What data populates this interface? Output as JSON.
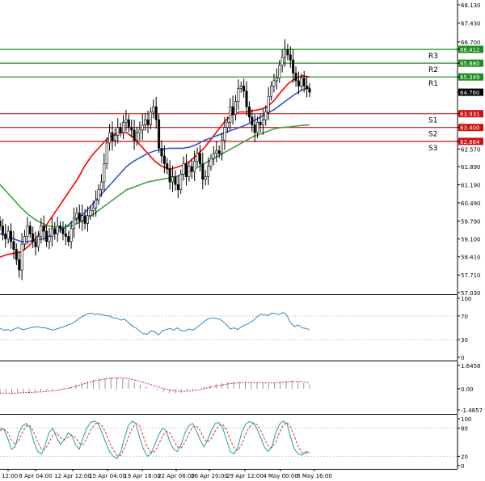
{
  "chart_data": [
    {
      "type": "candlestick",
      "panel": "price",
      "ylim": [
        57.03,
        68.13
      ],
      "y_ticks": [
        "68.130",
        "67.430",
        "66.700",
        "66.412",
        "65.880",
        "65.349",
        "64.760",
        "63.931",
        "63.400",
        "62.864",
        "62.570",
        "61.890",
        "61.190",
        "60.490",
        "59.790",
        "59.100",
        "58.410",
        "57.710",
        "57.030"
      ],
      "x_tick_labels": [
        "12:00",
        "8 Apr 04:00",
        "12 Apr 12:00",
        "15 Apr 04:00",
        "19 Apr 16:00",
        "22 Apr 08:00",
        "26 Apr 20:00",
        "29 Apr 12:00",
        "4 May 00:00",
        "6 May 16:00"
      ],
      "last_price": 64.76,
      "levels": [
        {
          "name": "R3",
          "value": 66.412,
          "label": "66.412",
          "color": "#1a8f1a"
        },
        {
          "name": "R2",
          "value": 65.88,
          "label": "65.880",
          "color": "#1a8f1a"
        },
        {
          "name": "R1",
          "value": 65.349,
          "label": "65.349",
          "color": "#1a8f1a"
        },
        {
          "name": "S1",
          "value": 63.931,
          "label": "63.931",
          "color": "#d01010"
        },
        {
          "name": "S2",
          "value": 63.4,
          "label": "63.400",
          "color": "#d01010"
        },
        {
          "name": "S3",
          "value": 62.864,
          "label": "62.864",
          "color": "#d01010"
        }
      ],
      "closes": [
        59.6,
        59.3,
        59.1,
        59.4,
        59.0,
        58.7,
        58.3,
        57.9,
        58.9,
        59.2,
        59.6,
        59.3,
        59.0,
        58.8,
        59.2,
        59.6,
        59.4,
        59.0,
        59.2,
        59.5,
        59.3,
        59.6,
        59.5,
        59.3,
        59.2,
        59.0,
        59.5,
        59.9,
        60.1,
        59.8,
        60.0,
        59.7,
        60.0,
        60.2,
        60.3,
        60.6,
        61.0,
        61.3,
        62.0,
        62.8,
        63.2,
        62.9,
        63.1,
        63.4,
        63.2,
        63.6,
        63.7,
        63.4,
        63.3,
        62.9,
        63.2,
        63.3,
        63.5,
        63.7,
        63.5,
        64.0,
        64.2,
        63.7,
        62.6,
        62.3,
        62.0,
        61.8,
        61.3,
        61.5,
        61.2,
        61.0,
        61.6,
        62.0,
        61.5,
        61.9,
        61.7,
        62.1,
        62.4,
        62.0,
        61.4,
        61.5,
        61.9,
        62.2,
        62.4,
        62.5,
        62.4,
        62.9,
        63.4,
        63.6,
        64.2,
        63.9,
        64.4,
        64.9,
        65.0,
        64.8,
        64.2,
        63.8,
        63.5,
        63.2,
        63.6,
        63.5,
        63.7,
        64.0,
        64.6,
        65.0,
        65.2,
        65.3,
        65.8,
        66.1,
        66.4,
        66.2,
        66.0,
        65.5,
        65.2,
        65.0,
        65.3,
        65.0,
        64.9,
        64.76
      ],
      "series": [
        {
          "color": "#ff0000",
          "values": [
            58.4,
            58.5,
            58.55,
            58.6,
            58.8,
            59.1,
            59.4,
            59.8,
            60.2,
            60.6,
            61.0,
            61.4,
            61.9,
            62.3,
            62.6,
            62.9,
            63.1,
            63.2,
            63.2,
            63.0,
            62.7,
            62.4,
            62.1,
            61.9,
            61.8,
            61.85,
            61.95,
            62.1,
            62.35,
            62.6,
            62.95,
            63.3,
            63.65,
            63.9,
            64.0,
            64.0,
            64.05,
            64.1,
            64.2,
            64.45,
            64.8,
            65.1,
            65.3,
            65.4,
            65.35
          ]
        },
        {
          "color": "#3355cc",
          "values": [
            59.3,
            59.2,
            59.1,
            59.0,
            59.0,
            59.05,
            59.1,
            59.2,
            59.35,
            59.5,
            59.7,
            59.9,
            60.1,
            60.4,
            60.7,
            61.0,
            61.3,
            61.6,
            61.9,
            62.1,
            62.25,
            62.4,
            62.5,
            62.55,
            62.6,
            62.6,
            62.6,
            62.65,
            62.75,
            62.9,
            63.0,
            63.1,
            63.2,
            63.3,
            63.4,
            63.5,
            63.65,
            63.8,
            63.95,
            64.1,
            64.3,
            64.5,
            64.7,
            64.85,
            64.95
          ]
        },
        {
          "color": "#40a040",
          "values": [
            61.2,
            60.9,
            60.6,
            60.3,
            60.05,
            59.85,
            59.7,
            59.6,
            59.55,
            59.55,
            59.6,
            59.7,
            59.85,
            60.0,
            60.2,
            60.4,
            60.6,
            60.8,
            61.0,
            61.1,
            61.2,
            61.3,
            61.35,
            61.4,
            61.45,
            61.5,
            61.6,
            61.7,
            61.85,
            62.0,
            62.15,
            62.3,
            62.45,
            62.6,
            62.75,
            62.9,
            63.05,
            63.15,
            63.25,
            63.35,
            63.4,
            63.42,
            63.45,
            63.48,
            63.5
          ]
        }
      ]
    },
    {
      "type": "line",
      "panel": "oscillator_1",
      "ylim": [
        0,
        100
      ],
      "y_ticks": [
        "100",
        "70",
        "30",
        "0"
      ],
      "series": [
        {
          "color": "#2a8ad4",
          "values": [
            49,
            46,
            47,
            45,
            49,
            50,
            47,
            48,
            50,
            51,
            52,
            50,
            50,
            48,
            46,
            48,
            50,
            52,
            55,
            57,
            61,
            66,
            70,
            73,
            75,
            73,
            74,
            72,
            71,
            70,
            67,
            66,
            63,
            65,
            59,
            53,
            50,
            44,
            40,
            39,
            45,
            43,
            38,
            45,
            47,
            49,
            46,
            50,
            45,
            45,
            48,
            46,
            50,
            55,
            60,
            65,
            67,
            66,
            65,
            61,
            55,
            48,
            50,
            47,
            52,
            55,
            58,
            62,
            68,
            73,
            72,
            71,
            75,
            74,
            73,
            76,
            71,
            58,
            52,
            55,
            50,
            49,
            47
          ]
        }
      ]
    },
    {
      "type": "bar",
      "panel": "oscillator_2",
      "ylim": [
        -1.4857,
        1.6458
      ],
      "y_ticks": [
        "1.6458",
        "0.00",
        "-1.4857"
      ],
      "signal_color": "#dd2222",
      "values": [
        -0.3,
        -0.32,
        -0.3,
        -0.28,
        -0.25,
        -0.22,
        -0.2,
        -0.18,
        -0.15,
        -0.1,
        -0.05,
        0.05,
        0.15,
        0.3,
        0.45,
        0.55,
        0.65,
        0.72,
        0.78,
        0.8,
        0.78,
        0.72,
        0.6,
        0.45,
        0.3,
        0.15,
        0.0,
        -0.12,
        -0.22,
        -0.3,
        -0.32,
        -0.28,
        -0.2,
        -0.1,
        0.0,
        0.12,
        0.25,
        0.35,
        0.42,
        0.48,
        0.5,
        0.5,
        0.48,
        0.45,
        0.42,
        0.4,
        0.38,
        0.42,
        0.5,
        0.55,
        0.55,
        0.5,
        0.4,
        0.3
      ],
      "signal": [
        -0.3,
        -0.31,
        -0.31,
        -0.3,
        -0.28,
        -0.26,
        -0.24,
        -0.22,
        -0.19,
        -0.15,
        -0.1,
        -0.03,
        0.06,
        0.17,
        0.3,
        0.42,
        0.53,
        0.62,
        0.69,
        0.74,
        0.76,
        0.75,
        0.7,
        0.62,
        0.52,
        0.4,
        0.27,
        0.14,
        0.02,
        -0.08,
        -0.15,
        -0.18,
        -0.17,
        -0.13,
        -0.07,
        0.01,
        0.1,
        0.19,
        0.27,
        0.34,
        0.39,
        0.42,
        0.44,
        0.44,
        0.43,
        0.42,
        0.41,
        0.41,
        0.44,
        0.48,
        0.51,
        0.51,
        0.48,
        0.42
      ]
    },
    {
      "type": "line",
      "panel": "oscillator_3",
      "ylim": [
        0,
        100
      ],
      "y_ticks": [
        "100",
        "80",
        "20",
        "0"
      ],
      "series": [
        {
          "color": "#20a0a0",
          "values": [
            80,
            78,
            60,
            35,
            40,
            70,
            85,
            90,
            80,
            50,
            30,
            25,
            45,
            70,
            80,
            60,
            45,
            55,
            70,
            65,
            45,
            35,
            60,
            80,
            92,
            95,
            90,
            70,
            50,
            30,
            20,
            15,
            30,
            60,
            85,
            95,
            90,
            60,
            35,
            20,
            25,
            45,
            65,
            80,
            75,
            50,
            35,
            30,
            45,
            70,
            85,
            90,
            75,
            55,
            40,
            55,
            75,
            90,
            92,
            80,
            55,
            30,
            25,
            40,
            70,
            88,
            94,
            92,
            80,
            60,
            40,
            30,
            40,
            70,
            88,
            95,
            90,
            60,
            35,
            25,
            22,
            30,
            28
          ]
        },
        {
          "color": "#dd3333",
          "values": [
            75,
            78,
            72,
            55,
            45,
            55,
            72,
            85,
            85,
            70,
            50,
            35,
            35,
            50,
            65,
            70,
            60,
            55,
            60,
            65,
            60,
            48,
            45,
            58,
            75,
            88,
            92,
            85,
            70,
            50,
            33,
            22,
            22,
            38,
            60,
            80,
            90,
            85,
            62,
            40,
            28,
            30,
            45,
            62,
            73,
            70,
            55,
            40,
            38,
            50,
            68,
            82,
            85,
            75,
            58,
            50,
            58,
            74,
            86,
            88,
            76,
            55,
            38,
            32,
            45,
            66,
            82,
            90,
            88,
            76,
            58,
            42,
            38,
            50,
            70,
            86,
            92,
            82,
            62,
            40,
            28,
            26,
            28
          ]
        }
      ]
    }
  ]
}
